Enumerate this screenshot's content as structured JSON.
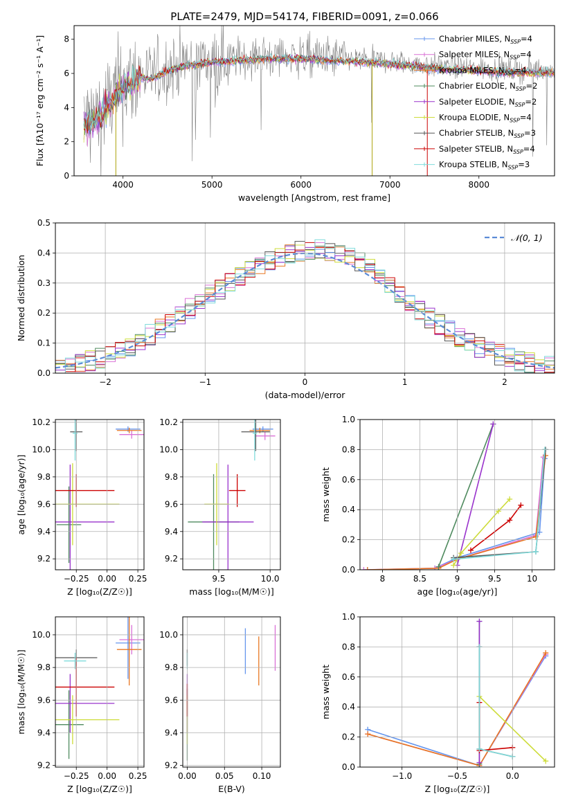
{
  "figure_title": "PLATE=2479, MJD=54174, FIBERID=0091, z=0.066",
  "colors": {
    "chabrier_miles": "#6495ed",
    "salpeter_miles": "#da70d6",
    "kroupa_miles": "#e87722",
    "chabrier_elodie": "#4e8a5e",
    "salpeter_elodie": "#9932cc",
    "kroupa_elodie": "#cddc39",
    "chabrier_stelib": "#555555",
    "salpeter_stelib": "#cc0000",
    "kroupa_stelib": "#7fdbdb",
    "data": "#808080",
    "normal": "#5b8bd6",
    "grid": "#b0b0b0"
  },
  "legend_entries": [
    {
      "key": "chabrier_miles",
      "imf": "Chabrier",
      "lib": "MILES",
      "nssp": "4"
    },
    {
      "key": "salpeter_miles",
      "imf": "Salpeter",
      "lib": "MILES",
      "nssp": "4"
    },
    {
      "key": "kroupa_miles",
      "imf": "Kroupa",
      "lib": "MILES",
      "nssp": "4"
    },
    {
      "key": "chabrier_elodie",
      "imf": "Chabrier",
      "lib": "ELODIE",
      "nssp": "2"
    },
    {
      "key": "salpeter_elodie",
      "imf": "Salpeter",
      "lib": "ELODIE",
      "nssp": "2"
    },
    {
      "key": "kroupa_elodie",
      "imf": "Kroupa",
      "lib": "ELODIE",
      "nssp": "4"
    },
    {
      "key": "chabrier_stelib",
      "imf": "Chabrier",
      "lib": "STELIB",
      "nssp": "3"
    },
    {
      "key": "salpeter_stelib",
      "imf": "Salpeter",
      "lib": "STELIB",
      "nssp": "4"
    },
    {
      "key": "kroupa_stelib",
      "imf": "Kroupa",
      "lib": "STELIB",
      "nssp": "3"
    }
  ],
  "chart_data": [
    {
      "id": "spectrum",
      "type": "line",
      "xlabel": "wavelength [Angstrom, rest frame]",
      "ylabel": "Flux [fλ10⁻¹⁷ erg cm⁻² s⁻¹ A⁻¹]",
      "xlim": [
        3450,
        8850
      ],
      "ylim": [
        0,
        8.8
      ],
      "xticks": [
        4000,
        5000,
        6000,
        7000,
        8000
      ],
      "yticks": [
        0,
        2,
        4,
        6,
        8
      ],
      "grid": false,
      "legend_position": "top-right",
      "continuum": {
        "x": [
          3560,
          3700,
          3800,
          3900,
          4000,
          4100,
          4200,
          4300,
          4500,
          4700,
          5000,
          5300,
          5600,
          6000,
          6400,
          6800,
          7200,
          7600,
          8000,
          8400,
          8850
        ],
        "y": [
          3.1,
          3.4,
          4.0,
          4.7,
          5.3,
          5.6,
          5.9,
          5.8,
          6.3,
          6.6,
          6.8,
          6.9,
          7.0,
          7.0,
          6.9,
          6.8,
          6.6,
          6.4,
          6.3,
          6.2,
          6.2
        ]
      }
    },
    {
      "id": "residuals",
      "type": "bar",
      "xlabel": "(data-model)/error",
      "ylabel": "Normed distribution",
      "xlim": [
        -2.5,
        2.5
      ],
      "ylim": [
        0,
        0.5
      ],
      "xticks": [
        -2,
        -1,
        0,
        1,
        2
      ],
      "yticks": [
        0.0,
        0.1,
        0.2,
        0.3,
        0.4,
        0.5
      ],
      "grid": true,
      "legend_position": "top-right",
      "legend_label": "𝒩(0, 1)",
      "bin_width": 0.1
    },
    {
      "id": "age_vs_Z",
      "type": "scatter",
      "xlabel": "Z [log₁₀(Z/Z☉)]",
      "ylabel": "age  [log₁₀(age/yr)]",
      "xlim": [
        -0.42,
        0.3
      ],
      "ylim": [
        9.12,
        10.22
      ],
      "xticks": [
        -0.25,
        0.0,
        0.25
      ],
      "xtick_labels": [
        "−0.25",
        "0.00",
        "0.25"
      ],
      "yticks": [
        9.2,
        9.4,
        9.6,
        9.8,
        10.0,
        10.2
      ],
      "grid": true,
      "points": [
        {
          "s": "chabrier_miles",
          "x": 0.17,
          "y": 10.15,
          "xe": 0.1,
          "ye": 0.02
        },
        {
          "s": "salpeter_miles",
          "x": 0.2,
          "y": 10.11,
          "xe": 0.1,
          "ye": 0.03
        },
        {
          "s": "kroupa_miles",
          "x": 0.18,
          "y": 10.14,
          "xe": 0.1,
          "ye": 0.02
        },
        {
          "s": "chabrier_elodie",
          "x": -0.31,
          "y": 9.45,
          "xe": 0.1,
          "ye": 0.28
        },
        {
          "s": "salpeter_elodie",
          "x": -0.3,
          "y": 9.47,
          "xe": 0.36,
          "ye": 0.42
        },
        {
          "s": "kroupa_elodie",
          "x": -0.28,
          "y": 9.6,
          "xe": 0.38,
          "ye": 0.3
        },
        {
          "s": "chabrier_stelib",
          "x": -0.25,
          "y": 10.13,
          "xe": 0.05,
          "ye": 0.14
        },
        {
          "s": "salpeter_stelib",
          "x": -0.25,
          "y": 9.7,
          "xe": 0.31,
          "ye": 0.12
        },
        {
          "s": "kroupa_stelib",
          "x": -0.26,
          "y": 10.12,
          "xe": 0.02,
          "ye": 0.2
        }
      ]
    },
    {
      "id": "age_vs_mass",
      "type": "scatter",
      "xlabel": "mass [log₁₀(M/M☉)]",
      "ylabel": "",
      "xlim": [
        9.15,
        10.1
      ],
      "ylim": [
        9.12,
        10.22
      ],
      "xticks": [
        9.5,
        10.0
      ],
      "xtick_labels": [
        "9.5",
        "10.0"
      ],
      "yticks": [
        9.2,
        9.4,
        9.6,
        9.8,
        10.0,
        10.2
      ],
      "grid": true,
      "points": [
        {
          "s": "chabrier_miles",
          "x": 9.93,
          "y": 10.15,
          "xe": 0.1,
          "ye": 0.02
        },
        {
          "s": "salpeter_miles",
          "x": 9.95,
          "y": 10.1,
          "xe": 0.1,
          "ye": 0.03
        },
        {
          "s": "kroupa_miles",
          "x": 9.9,
          "y": 10.14,
          "xe": 0.1,
          "ye": 0.02
        },
        {
          "s": "chabrier_elodie",
          "x": 9.45,
          "y": 9.47,
          "xe": 0.25,
          "ye": 0.35
        },
        {
          "s": "salpeter_elodie",
          "x": 9.59,
          "y": 9.47,
          "xe": 0.25,
          "ye": 0.42
        },
        {
          "s": "kroupa_elodie",
          "x": 9.48,
          "y": 9.6,
          "xe": 0.12,
          "ye": 0.3
        },
        {
          "s": "chabrier_stelib",
          "x": 9.86,
          "y": 10.13,
          "xe": 0.14,
          "ye": 0.14
        },
        {
          "s": "salpeter_stelib",
          "x": 9.68,
          "y": 9.7,
          "xe": 0.08,
          "ye": 0.12
        },
        {
          "s": "kroupa_stelib",
          "x": 9.85,
          "y": 10.12,
          "xe": 0.02,
          "ye": 0.2
        }
      ]
    },
    {
      "id": "weight_vs_age",
      "type": "line",
      "xlabel": "age  [log₁₀(age/yr)]",
      "ylabel": "mass weight",
      "xlim": [
        7.7,
        10.3
      ],
      "ylim": [
        0,
        1.0
      ],
      "xticks": [
        8.0,
        8.5,
        9.0,
        9.5,
        10.0
      ],
      "yticks": [
        0.0,
        0.2,
        0.4,
        0.6,
        0.8,
        1.0
      ],
      "grid": true,
      "series": [
        {
          "s": "chabrier_miles",
          "x": [
            7.8,
            8.7,
            9.0,
            10.1,
            10.17
          ],
          "y": [
            0.0,
            0.01,
            0.08,
            0.25,
            0.74
          ]
        },
        {
          "s": "salpeter_miles",
          "x": [
            7.75,
            8.7,
            9.0,
            10.05,
            10.15
          ],
          "y": [
            0.0,
            0.01,
            0.07,
            0.23,
            0.75
          ]
        },
        {
          "s": "kroupa_miles",
          "x": [
            7.8,
            8.75,
            9.0,
            10.05,
            10.18
          ],
          "y": [
            0.0,
            0.01,
            0.07,
            0.22,
            0.76
          ]
        },
        {
          "s": "chabrier_elodie",
          "x": [
            8.75,
            9.48
          ],
          "y": [
            0.02,
            0.97
          ]
        },
        {
          "s": "salpeter_elodie",
          "x": [
            9.0,
            9.48
          ],
          "y": [
            0.03,
            0.97
          ]
        },
        {
          "s": "kroupa_elodie",
          "x": [
            8.95,
            9.05,
            9.55,
            9.7
          ],
          "y": [
            0.03,
            0.11,
            0.39,
            0.47
          ]
        },
        {
          "s": "chabrier_stelib",
          "x": [
            8.95,
            10.05,
            10.18
          ],
          "y": [
            0.08,
            0.12,
            0.8
          ]
        },
        {
          "s": "salpeter_stelib",
          "x": [
            9.18,
            9.7,
            9.85
          ],
          "y": [
            0.13,
            0.33,
            0.43
          ]
        },
        {
          "s": "kroupa_stelib",
          "x": [
            8.95,
            10.05,
            10.17
          ],
          "y": [
            0.07,
            0.12,
            0.8
          ]
        }
      ]
    },
    {
      "id": "mass_vs_Z",
      "type": "scatter",
      "xlabel": "Z [log₁₀(Z/Z☉)]",
      "ylabel": "mass [log₁₀(M/M☉)]",
      "xlim": [
        -0.42,
        0.3
      ],
      "ylim": [
        9.19,
        10.11
      ],
      "xticks": [
        -0.25,
        0.0,
        0.25
      ],
      "xtick_labels": [
        "−0.25",
        "0.00",
        "0.25"
      ],
      "yticks": [
        9.2,
        9.4,
        9.6,
        9.8,
        10.0
      ],
      "grid": true,
      "points": [
        {
          "s": "chabrier_miles",
          "x": 0.17,
          "y": 9.95,
          "xe": 0.1,
          "ye": 0.22
        },
        {
          "s": "salpeter_miles",
          "x": 0.2,
          "y": 9.97,
          "xe": 0.1,
          "ye": 0.09
        },
        {
          "s": "kroupa_miles",
          "x": 0.18,
          "y": 9.91,
          "xe": 0.1,
          "ye": 0.22
        },
        {
          "s": "chabrier_elodie",
          "x": -0.31,
          "y": 9.45,
          "xe": 0.12,
          "ye": 0.21
        },
        {
          "s": "salpeter_elodie",
          "x": -0.3,
          "y": 9.58,
          "xe": 0.36,
          "ye": 0.18
        },
        {
          "s": "kroupa_elodie",
          "x": -0.28,
          "y": 9.48,
          "xe": 0.38,
          "ye": 0.15
        },
        {
          "s": "chabrier_stelib",
          "x": -0.25,
          "y": 9.86,
          "xe": 0.17,
          "ye": 0.05
        },
        {
          "s": "salpeter_stelib",
          "x": -0.25,
          "y": 9.68,
          "xe": 0.31,
          "ye": 0.18
        },
        {
          "s": "kroupa_stelib",
          "x": -0.26,
          "y": 9.84,
          "xe": 0.09,
          "ye": 0.05
        }
      ]
    },
    {
      "id": "mass_vs_ebv",
      "type": "scatter",
      "xlabel": "E(B-V)",
      "ylabel": "",
      "xlim": [
        -0.006,
        0.125
      ],
      "ylim": [
        9.19,
        10.11
      ],
      "xticks": [
        0.0,
        0.05,
        0.1
      ],
      "xtick_labels": [
        "0.00",
        "0.05",
        "0.10"
      ],
      "yticks": [
        9.2,
        9.4,
        9.6,
        9.8,
        10.0
      ],
      "grid": true,
      "points": [
        {
          "s": "chabrier_miles",
          "x": 0.078,
          "y": 9.9,
          "xe": 0,
          "ye": 0.14
        },
        {
          "s": "salpeter_miles",
          "x": 0.118,
          "y": 9.92,
          "xe": 0,
          "ye": 0.14
        },
        {
          "s": "kroupa_miles",
          "x": 0.096,
          "y": 9.84,
          "xe": 0,
          "ye": 0.15
        },
        {
          "s": "chabrier_elodie",
          "x": 0.0,
          "y": 9.45,
          "xe": 0,
          "ye": 0.22
        },
        {
          "s": "salpeter_elodie",
          "x": 0.0,
          "y": 9.58,
          "xe": 0,
          "ye": 0.18
        },
        {
          "s": "kroupa_elodie",
          "x": 0.0,
          "y": 9.48,
          "xe": 0,
          "ye": 0.15
        },
        {
          "s": "chabrier_stelib",
          "x": 0.0,
          "y": 9.86,
          "xe": 0,
          "ye": 0.05
        },
        {
          "s": "salpeter_stelib",
          "x": 0.0,
          "y": 9.6,
          "xe": 0,
          "ye": 0.1
        },
        {
          "s": "kroupa_stelib",
          "x": 0.0,
          "y": 9.84,
          "xe": 0,
          "ye": 0.05
        }
      ]
    },
    {
      "id": "weight_vs_Z",
      "type": "line",
      "xlabel": "Z [log₁₀(Z/Z☉)]",
      "ylabel": "mass weight",
      "xlim": [
        -1.38,
        0.38
      ],
      "ylim": [
        0,
        1.0
      ],
      "xticks": [
        -1.0,
        -0.5,
        0.0
      ],
      "xtick_labels": [
        "−1.0",
        "−0.5",
        "0.0"
      ],
      "yticks": [
        0.0,
        0.2,
        0.4,
        0.6,
        0.8,
        1.0
      ],
      "grid": true,
      "series": [
        {
          "s": "chabrier_miles",
          "x": [
            -1.31,
            -0.3,
            0.3
          ],
          "y": [
            0.25,
            0.01,
            0.74
          ]
        },
        {
          "s": "salpeter_miles",
          "x": [
            -1.31,
            -0.3,
            0.3
          ],
          "y": [
            0.22,
            0.01,
            0.75
          ]
        },
        {
          "s": "kroupa_miles",
          "x": [
            -1.31,
            -0.3,
            0.3
          ],
          "y": [
            0.22,
            0.01,
            0.76
          ]
        },
        {
          "s": "chabrier_elodie",
          "x": [
            -0.3,
            -0.3
          ],
          "y": [
            0.02,
            0.97
          ]
        },
        {
          "s": "salpeter_elodie",
          "x": [
            -0.3,
            -0.3
          ],
          "y": [
            0.03,
            0.97
          ]
        },
        {
          "s": "kroupa_elodie",
          "x": [
            -0.3,
            0.3
          ],
          "y": [
            0.47,
            0.04
          ]
        },
        {
          "s": "chabrier_stelib",
          "x": [
            -0.3,
            -0.3,
            0.0
          ],
          "y": [
            0.8,
            0.12,
            0.07
          ]
        },
        {
          "s": "salpeter_stelib",
          "x": [
            -0.3,
            -0.3,
            0.0
          ],
          "y": [
            0.43,
            0.11,
            0.13
          ]
        },
        {
          "s": "kroupa_stelib",
          "x": [
            -0.3,
            -0.3,
            0.0
          ],
          "y": [
            0.8,
            0.12,
            0.07
          ]
        }
      ]
    }
  ]
}
